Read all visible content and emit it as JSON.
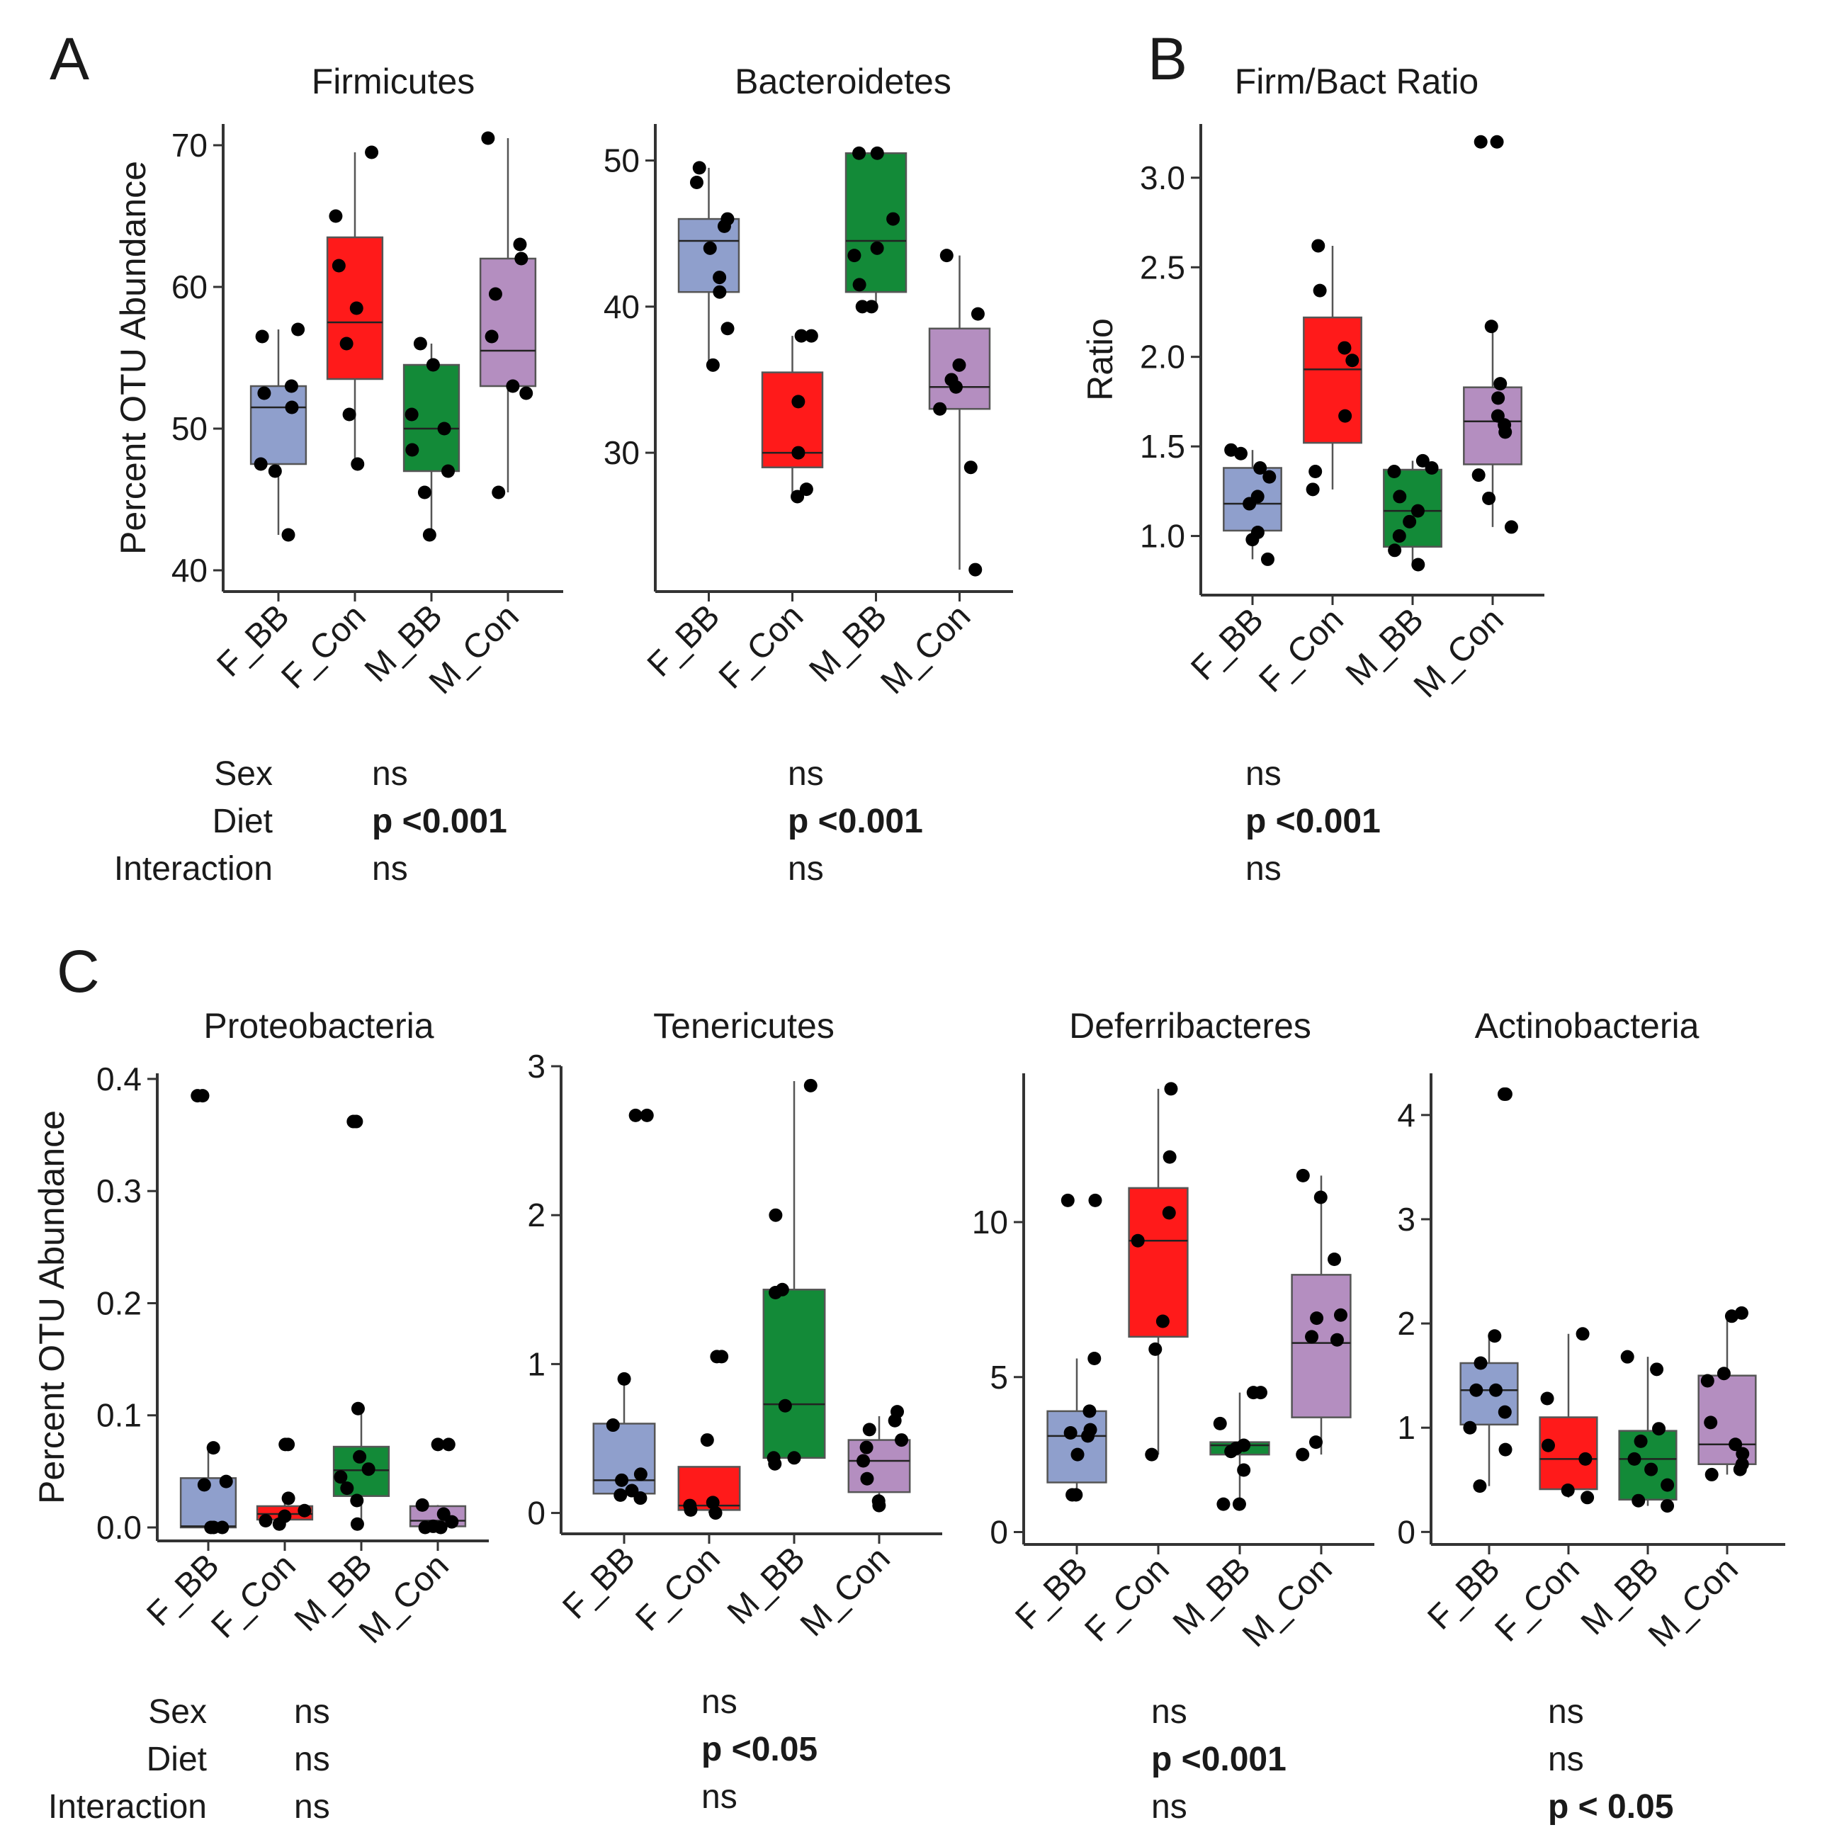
{
  "colors": {
    "F_BB": "#8f9fcc",
    "F_Con": "#ff1a1a",
    "M_BB": "#138a38",
    "M_Con": "#b48ec0"
  },
  "panel_letters": [
    "A",
    "B",
    "C"
  ],
  "stats": {
    "row_labels": [
      "Sex",
      "Diet",
      "Interaction"
    ],
    "row_labels_c": [
      "Sex",
      "Diet",
      "Interaction"
    ]
  },
  "chart_data": [
    {
      "id": "firmicutes",
      "type": "box",
      "title": "Firmicutes",
      "ylabel": "Percent OTU Abundance",
      "ylim": [
        38.5,
        71.5
      ],
      "yticks": [
        40,
        50,
        60,
        70
      ],
      "categories": [
        "F_BB",
        "F_Con",
        "M_BB",
        "M_Con"
      ],
      "boxes": [
        {
          "min": 42.5,
          "q1": 47.5,
          "median": 51.5,
          "q3": 53,
          "max": 57
        },
        {
          "min": 47.5,
          "q1": 53.5,
          "median": 57.5,
          "q3": 63.5,
          "max": 69.5
        },
        {
          "min": 42.5,
          "q1": 47,
          "median": 50,
          "q3": 54.5,
          "max": 56
        },
        {
          "min": 45.5,
          "q1": 53,
          "median": 55.5,
          "q3": 62,
          "max": 70.5
        }
      ],
      "points": [
        [
          42.5,
          47.5,
          47.0,
          51.5,
          52.5,
          53.0,
          56.5,
          57.0
        ],
        [
          47.5,
          51.0,
          56.0,
          58.5,
          61.5,
          65.0,
          69.5
        ],
        [
          42.5,
          45.5,
          47.0,
          48.5,
          50.0,
          51.0,
          54.5,
          56.0
        ],
        [
          45.5,
          52.5,
          53.0,
          56.5,
          59.5,
          62.0,
          63.0,
          70.5
        ]
      ],
      "stats": [
        "ns",
        "p <0.001",
        "ns"
      ]
    },
    {
      "id": "bacteroidetes",
      "type": "box",
      "title": "Bacteroidetes",
      "ylabel": "",
      "ylim": [
        20.5,
        52.5
      ],
      "yticks": [
        30,
        40,
        50
      ],
      "categories": [
        "F_BB",
        "F_Con",
        "M_BB",
        "M_Con"
      ],
      "boxes": [
        {
          "min": 36,
          "q1": 41,
          "median": 44.5,
          "q3": 46,
          "max": 49.5
        },
        {
          "min": 27,
          "q1": 29,
          "median": 30,
          "q3": 35.5,
          "max": 38
        },
        {
          "min": 40,
          "q1": 41,
          "median": 44.5,
          "q3": 50.5,
          "max": 50.5
        },
        {
          "min": 22,
          "q1": 33,
          "median": 34.5,
          "q3": 38.5,
          "max": 43.5
        }
      ],
      "points": [
        [
          36.0,
          38.5,
          41.0,
          42.0,
          44.0,
          45.5,
          46.0,
          48.5,
          49.5
        ],
        [
          27.0,
          27.5,
          30.0,
          33.5,
          38.0,
          38.0
        ],
        [
          40.0,
          40.0,
          41.5,
          43.5,
          44.0,
          46.0,
          50.5,
          50.5
        ],
        [
          22.0,
          29.0,
          33.0,
          34.5,
          35.0,
          36.0,
          39.5,
          43.5
        ]
      ],
      "stats": [
        "ns",
        "p <0.001",
        "ns"
      ]
    },
    {
      "id": "firm_bact_ratio",
      "type": "box",
      "title": "Firm/Bact Ratio",
      "ylabel": "Ratio",
      "ylim": [
        0.67,
        3.3
      ],
      "yticks": [
        1.0,
        1.5,
        2.0,
        2.5,
        3.0
      ],
      "ytick_labels": [
        "1.0",
        "1.5",
        "2.0",
        "2.5",
        "3.0"
      ],
      "categories": [
        "F_BB",
        "F_Con",
        "M_BB",
        "M_Con"
      ],
      "boxes": [
        {
          "min": 0.87,
          "q1": 1.03,
          "median": 1.18,
          "q3": 1.38,
          "max": 1.48
        },
        {
          "min": 1.26,
          "q1": 1.52,
          "median": 1.93,
          "q3": 2.22,
          "max": 2.62
        },
        {
          "min": 0.84,
          "q1": 0.94,
          "median": 1.14,
          "q3": 1.37,
          "max": 1.42
        },
        {
          "min": 1.05,
          "q1": 1.4,
          "median": 1.64,
          "q3": 1.83,
          "max": 2.17
        }
      ],
      "points": [
        [
          0.87,
          0.98,
          1.02,
          1.18,
          1.22,
          1.33,
          1.38,
          1.46,
          1.48
        ],
        [
          1.26,
          1.36,
          1.67,
          1.98,
          2.05,
          2.37,
          2.62
        ],
        [
          0.84,
          0.92,
          1.0,
          1.08,
          1.14,
          1.22,
          1.36,
          1.38,
          1.42
        ],
        [
          1.05,
          1.21,
          1.34,
          1.58,
          1.62,
          1.67,
          1.77,
          1.85,
          2.17,
          3.2,
          3.2
        ]
      ],
      "stats": [
        "ns",
        "p <0.001",
        "ns"
      ]
    },
    {
      "id": "proteobacteria",
      "type": "box",
      "title": "Proteobacteria",
      "ylabel": "Percent OTU Abundance",
      "ylim": [
        -0.012,
        0.405
      ],
      "yticks": [
        0.0,
        0.1,
        0.2,
        0.3,
        0.4
      ],
      "ytick_labels": [
        "0.0",
        "0.1",
        "0.2",
        "0.3",
        "0.4"
      ],
      "categories": [
        "F_BB",
        "F_Con",
        "M_BB",
        "M_Con"
      ],
      "boxes": [
        {
          "min": 0.0,
          "q1": 0.0,
          "median": 0.001,
          "q3": 0.044,
          "max": 0.071
        },
        {
          "min": 0.005,
          "q1": 0.007,
          "median": 0.012,
          "q3": 0.019,
          "max": 0.026
        },
        {
          "min": 0.003,
          "q1": 0.028,
          "median": 0.051,
          "q3": 0.072,
          "max": 0.106
        },
        {
          "min": 0.0,
          "q1": 0.001,
          "median": 0.006,
          "q3": 0.019,
          "max": 0.02
        }
      ],
      "points": [
        [
          0.0,
          0.0,
          0.0,
          0.038,
          0.041,
          0.071,
          0.385,
          0.385
        ],
        [
          0.003,
          0.006,
          0.01,
          0.015,
          0.026,
          0.074,
          0.074
        ],
        [
          0.003,
          0.024,
          0.035,
          0.045,
          0.052,
          0.063,
          0.106,
          0.362,
          0.362
        ],
        [
          0.0,
          0.0,
          0.001,
          0.005,
          0.012,
          0.02,
          0.074,
          0.074
        ]
      ],
      "stats": [
        "ns",
        "ns",
        "ns"
      ]
    },
    {
      "id": "tenericutes",
      "type": "box",
      "title": "Tenericutes",
      "ylabel": "",
      "ylim": [
        -0.14,
        3.0
      ],
      "yticks": [
        0,
        1,
        2,
        3
      ],
      "categories": [
        "F_BB",
        "F_Con",
        "M_BB",
        "M_Con"
      ],
      "boxes": [
        {
          "min": 0.1,
          "q1": 0.13,
          "median": 0.22,
          "q3": 0.6,
          "max": 0.9
        },
        {
          "min": 0.0,
          "q1": 0.02,
          "median": 0.05,
          "q3": 0.31,
          "max": 0.31
        },
        {
          "min": 0.33,
          "q1": 0.37,
          "median": 0.73,
          "q3": 1.5,
          "max": 2.9
        },
        {
          "min": 0.05,
          "q1": 0.14,
          "median": 0.35,
          "q3": 0.49,
          "max": 0.65
        }
      ],
      "points": [
        [
          0.1,
          0.12,
          0.15,
          0.22,
          0.26,
          0.59,
          0.9,
          2.67,
          2.67
        ],
        [
          0.0,
          0.02,
          0.05,
          0.07,
          0.49,
          1.05,
          1.05
        ],
        [
          0.33,
          0.37,
          0.37,
          0.72,
          1.48,
          1.5,
          2.0,
          2.87
        ],
        [
          0.05,
          0.08,
          0.23,
          0.35,
          0.44,
          0.49,
          0.56,
          0.62,
          0.68
        ]
      ],
      "stats": [
        "ns",
        "p <0.05",
        "ns"
      ]
    },
    {
      "id": "deferribacteres",
      "type": "box",
      "title": "Deferribacteres",
      "ylabel": "",
      "ylim": [
        -0.4,
        14.8
      ],
      "yticks": [
        0,
        5,
        10
      ],
      "categories": [
        "F_BB",
        "F_Con",
        "M_BB",
        "M_Con"
      ],
      "boxes": [
        {
          "min": 1.2,
          "q1": 1.6,
          "median": 3.1,
          "q3": 3.9,
          "max": 5.6
        },
        {
          "min": 2.5,
          "q1": 6.3,
          "median": 9.4,
          "q3": 11.1,
          "max": 14.3
        },
        {
          "min": 0.9,
          "q1": 2.5,
          "median": 2.8,
          "q3": 2.9,
          "max": 4.5
        },
        {
          "min": 2.5,
          "q1": 3.7,
          "median": 6.1,
          "q3": 8.3,
          "max": 11.5
        }
      ],
      "points": [
        [
          1.2,
          1.2,
          2.5,
          3.1,
          3.2,
          3.3,
          3.9,
          5.6,
          10.7,
          10.7
        ],
        [
          2.5,
          5.9,
          6.8,
          9.4,
          10.3,
          12.1,
          14.3
        ],
        [
          0.9,
          0.9,
          2.0,
          2.6,
          2.7,
          2.8,
          3.5,
          4.5,
          4.5
        ],
        [
          2.5,
          2.9,
          6.2,
          6.3,
          6.9,
          7.0,
          8.8,
          10.8,
          11.5
        ]
      ],
      "stats": [
        "ns",
        "p <0.001",
        "ns"
      ]
    },
    {
      "id": "actinobacteria",
      "type": "box",
      "title": "Actinobacteria",
      "ylabel": "",
      "ylim": [
        -0.12,
        4.4
      ],
      "yticks": [
        0,
        1,
        2,
        3,
        4
      ],
      "categories": [
        "F_BB",
        "F_Con",
        "M_BB",
        "M_Con"
      ],
      "boxes": [
        {
          "min": 0.44,
          "q1": 1.03,
          "median": 1.36,
          "q3": 1.62,
          "max": 1.88
        },
        {
          "min": 0.33,
          "q1": 0.41,
          "median": 0.7,
          "q3": 1.1,
          "max": 1.9
        },
        {
          "min": 0.25,
          "q1": 0.31,
          "median": 0.7,
          "q3": 0.97,
          "max": 1.68
        },
        {
          "min": 0.55,
          "q1": 0.65,
          "median": 0.84,
          "q3": 1.5,
          "max": 2.07
        }
      ],
      "points": [
        [
          0.44,
          0.79,
          1.0,
          1.15,
          1.36,
          1.36,
          1.62,
          1.88,
          4.2,
          4.2
        ],
        [
          0.33,
          0.4,
          0.7,
          0.83,
          1.28,
          1.9
        ],
        [
          0.25,
          0.3,
          0.45,
          0.6,
          0.7,
          0.87,
          0.99,
          1.56,
          1.68
        ],
        [
          0.55,
          0.6,
          0.65,
          0.75,
          0.84,
          1.05,
          1.45,
          1.52,
          2.07,
          2.1
        ]
      ],
      "stats": [
        "ns",
        "ns",
        "p < 0.05"
      ]
    }
  ]
}
